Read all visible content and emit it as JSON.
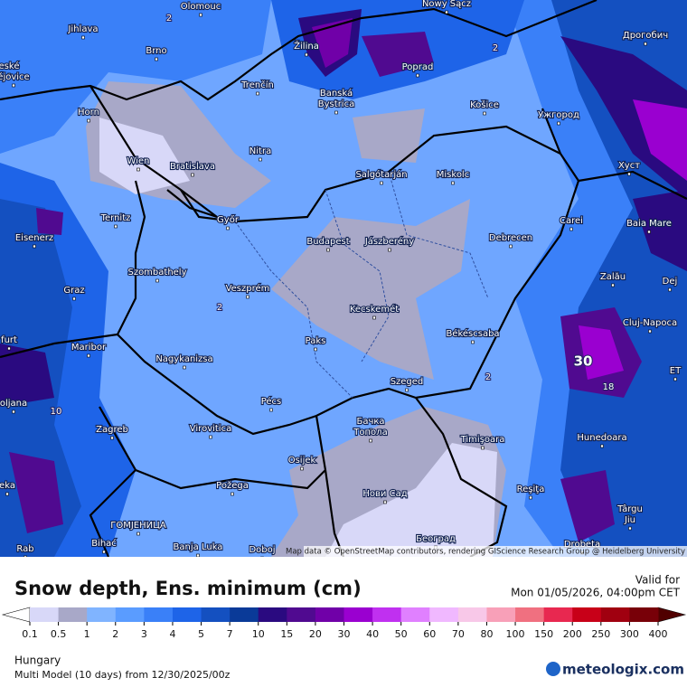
{
  "map": {
    "cities": [
      "Olomouc",
      "Nowy Sącz",
      "Jihlava",
      "Brno",
      "Žilina",
      "Poprad",
      "Дрогобич",
      "eské",
      "ějovice",
      "Trenčín",
      "Banská",
      "Bystrica",
      "Košice",
      "Ужгород",
      "Horn",
      "Nitra",
      "Wien",
      "Bratislava",
      "Хуст",
      "Salgótarján",
      "Miskolc",
      "Ternitz",
      "Győr",
      "Carei",
      "Baia Mare",
      "Eisenerz",
      "Budapest",
      "Jászberény",
      "Debrecen",
      "Szombathely",
      "Zalău",
      "Graz",
      "Veszprém",
      "Dej",
      "Kecskemét",
      "Cluj-Napoca",
      "furt",
      "Maribor",
      "Paks",
      "Békéscsaba",
      "Nagykanizsa",
      "ET",
      "Szeged",
      "oljana",
      "Pécs",
      "Бачка",
      "Топола",
      "Zagreb",
      "Virovitica",
      "Timişoara",
      "Hunedoara",
      "Osijek",
      "eka",
      "Požega",
      "Reşiţa",
      "Нови Сад",
      "Târgu",
      "Jiu",
      "ГОМЈЕНИЦА",
      "Bihać",
      "Banja Luka",
      "Doboj",
      "Rab",
      "Београд",
      "Drobeta"
    ],
    "contour_labels": [
      "2",
      "2",
      "2",
      "2",
      "30",
      "10",
      "18"
    ],
    "attribution": "Map data © OpenStreetMap contributors, rendering GIScience Research Group @ Heidelberg University"
  },
  "legend": {
    "title": "Snow depth, Ens. minimum (cm)",
    "ticks": [
      0.1,
      0.5,
      1,
      2,
      3,
      4,
      5,
      7,
      10,
      15,
      20,
      30,
      40,
      50,
      60,
      70,
      80,
      100,
      150,
      200,
      250,
      300,
      400
    ],
    "colors": [
      "#d8d8f8",
      "#a8a8c8",
      "#80b4ff",
      "#5a9cff",
      "#3a80f8",
      "#1e64e8",
      "#1450c0",
      "#0a3a98",
      "#2a0a80",
      "#500a90",
      "#7000a8",
      "#9a00d0",
      "#c030f0",
      "#e080ff",
      "#f0b8ff",
      "#f8c8e8",
      "#f8a0b8",
      "#f07080",
      "#e82850",
      "#c80018",
      "#a00010",
      "#780008"
    ],
    "under_color": "#ffffff",
    "over_color": "#500000"
  },
  "footer": {
    "valid_label": "Valid for",
    "valid_time": "Mon 01/05/2026, 04:00pm CET",
    "region": "Hungary",
    "run": "Multi Model (10 days) from 12/30/2025/00z",
    "brand": "meteologix.com"
  }
}
